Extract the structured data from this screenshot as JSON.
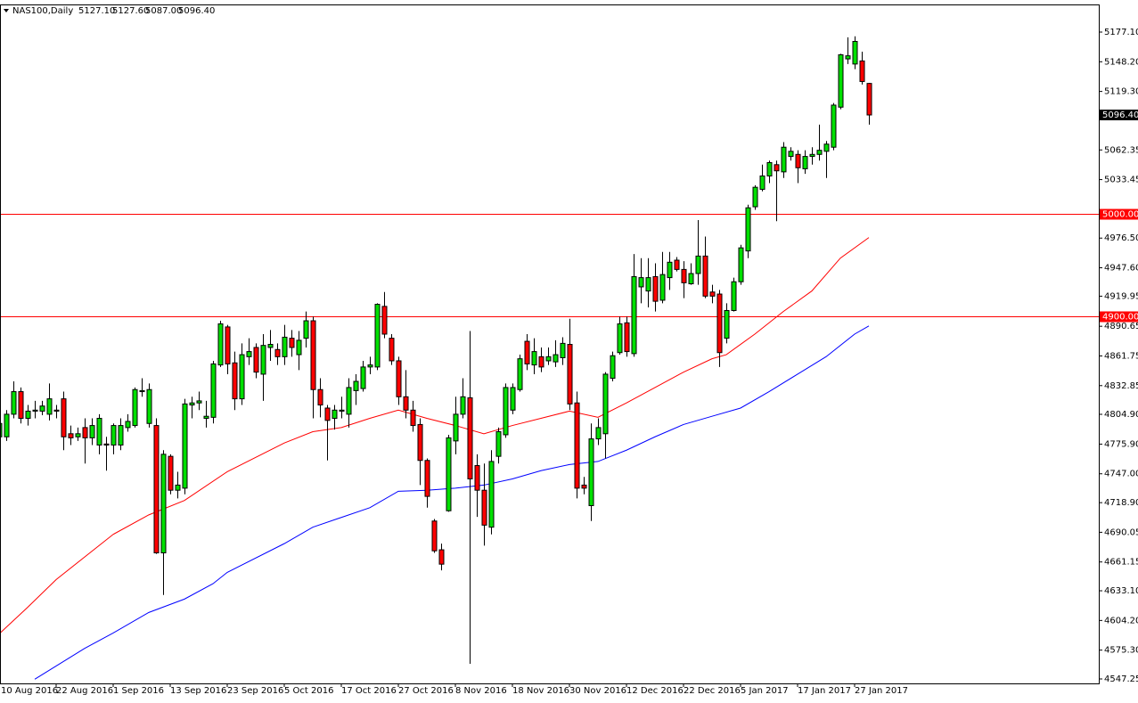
{
  "header": {
    "symbol": "NAS100,Daily",
    "ohlc": [
      "5127.10",
      "5127.60",
      "5087.00",
      "5096.40"
    ]
  },
  "chart_data": {
    "type": "candlestick",
    "categories": [
      "10 Aug 2016",
      null,
      null,
      null,
      null,
      null,
      null,
      null,
      "22 Aug 2016",
      null,
      null,
      null,
      null,
      null,
      null,
      null,
      "1 Sep 2016",
      null,
      null,
      null,
      null,
      null,
      null,
      null,
      "13 Sep 2016",
      null,
      null,
      null,
      null,
      null,
      null,
      null,
      "23 Sep 2016",
      null,
      null,
      null,
      null,
      null,
      null,
      null,
      "5 Oct 2016",
      null,
      null,
      null,
      null,
      null,
      null,
      null,
      "17 Oct 2016",
      null,
      null,
      null,
      null,
      null,
      null,
      null,
      "27 Oct 2016",
      null,
      null,
      null,
      null,
      null,
      null,
      null,
      "8 Nov 2016",
      null,
      null,
      null,
      null,
      null,
      null,
      null,
      "18 Nov 2016",
      null,
      null,
      null,
      null,
      null,
      null,
      null,
      "30 Nov 2016",
      null,
      null,
      null,
      null,
      null,
      null,
      null,
      "12 Dec 2016",
      null,
      null,
      null,
      null,
      null,
      null,
      null,
      "22 Dec 2016",
      null,
      null,
      null,
      null,
      null,
      null,
      null,
      "5 Jan 2017",
      null,
      null,
      null,
      null,
      null,
      null,
      null,
      "17 Jan 2017",
      null,
      null,
      null,
      null,
      null,
      null,
      null,
      "27 Jan 2017",
      null,
      null
    ],
    "open": [
      4783,
      4783,
      4805,
      4827,
      4801,
      4808,
      4808,
      4805,
      4809,
      4820,
      4786,
      4783,
      4792,
      4782,
      4775,
      4776,
      4775,
      4775,
      4792,
      4794,
      4827,
      4796,
      4794,
      4670,
      4764,
      4731,
      4733,
      4814,
      4816,
      4801,
      4802,
      4853,
      4890,
      4855,
      4820,
      4861,
      4870,
      4844,
      4870,
      4868,
      4861,
      4879,
      4863,
      4879,
      4896,
      4829,
      4811,
      4801,
      4808,
      4805,
      4828,
      4830,
      4851,
      4851,
      4910,
      4879,
      4857,
      4822,
      4809,
      4795,
      4760,
      4701,
      4673,
      4711,
      4779,
      4805,
      4821,
      4755,
      4731,
      4695,
      4764,
      4785,
      4809,
      4829,
      4876,
      4853,
      4861,
      4857,
      4856,
      4860,
      4873,
      4816,
      4736,
      4716,
      4781,
      4786,
      4840,
      4865,
      4894,
      4864,
      4929,
      4925,
      4939,
      4916,
      4938,
      4955,
      4946,
      4932,
      4942,
      4959,
      4924,
      4922,
      4879,
      4906,
      4934,
      4964,
      5007,
      5024,
      5037,
      5048,
      5041,
      5056,
      5058,
      5044,
      5056,
      5058,
      5061,
      5065,
      5104,
      5151,
      5146,
      5149,
      5127.1
    ],
    "high": [
      4801,
      4809,
      4837,
      4831,
      4814,
      4818,
      4818,
      4835,
      4814,
      4827,
      4794,
      4792,
      4801,
      4801,
      4805,
      4783,
      4796,
      4801,
      4805,
      4831,
      4840,
      4835,
      4801,
      4770,
      4766,
      4749,
      4820,
      4822,
      4827,
      4818,
      4857,
      4896,
      4892,
      4866,
      4874,
      4879,
      4874,
      4883,
      4887,
      4874,
      4892,
      4887,
      4886,
      4905,
      4900,
      4840,
      4814,
      4814,
      4822,
      4840,
      4844,
      4857,
      4861,
      4913,
      4924,
      4883,
      4861,
      4848,
      4818,
      4801,
      4762,
      4703,
      4679,
      4785,
      4822,
      4840,
      4886,
      4766,
      4757,
      4770,
      4792,
      4835,
      4835,
      4863,
      4883,
      4879,
      4870,
      4870,
      4877,
      4880,
      4898,
      4827,
      4744,
      4796,
      4801,
      4846,
      4866,
      4900,
      4900,
      4961,
      4957,
      4957,
      4952,
      4963,
      4963,
      4958,
      4954,
      4952,
      4994,
      4978,
      4931,
      4926,
      4913,
      4938,
      4970,
      5009,
      5028,
      5048,
      5052,
      5052,
      5070,
      5065,
      5062,
      5062,
      5065,
      5087,
      5071,
      5108,
      5156,
      5172,
      5173,
      5158,
      5127.6
    ],
    "low": [
      4773,
      4779,
      4801,
      4796,
      4794,
      4801,
      4804,
      4799,
      4801,
      4770,
      4775,
      4779,
      4757,
      4775,
      4766,
      4750,
      4766,
      4770,
      4788,
      4792,
      4822,
      4792,
      4669,
      4629,
      4727,
      4723,
      4727,
      4801,
      4809,
      4792,
      4796,
      4851,
      4844,
      4809,
      4814,
      4853,
      4840,
      4818,
      4857,
      4853,
      4853,
      4861,
      4848,
      4870,
      4801,
      4802,
      4760,
      4790,
      4801,
      4792,
      4814,
      4827,
      4844,
      4848,
      4879,
      4853,
      4814,
      4801,
      4788,
      4736,
      4714,
      4670,
      4653,
      4710,
      4766,
      4801,
      4562,
      4705,
      4677,
      4688,
      4757,
      4782,
      4805,
      4827,
      4848,
      4844,
      4846,
      4853,
      4851,
      4853,
      4809,
      4723,
      4727,
      4701,
      4775,
      4762,
      4837,
      4863,
      4861,
      4861,
      4913,
      4909,
      4905,
      4913,
      4926,
      4944,
      4918,
      4931,
      4931,
      4918,
      4913,
      4851,
      4874,
      4905,
      4931,
      4957,
      5004,
      5022,
      5030,
      4993,
      5035,
      5052,
      5030,
      5039,
      5048,
      5052,
      5035,
      5062,
      5102,
      5146,
      5141,
      5126,
      5087
    ],
    "close": [
      4796,
      4805,
      4827,
      4801,
      4808,
      4809,
      4813,
      4820,
      4808,
      4783,
      4782,
      4786,
      4782,
      4794,
      4801,
      4775,
      4794,
      4794,
      4798,
      4829,
      4828,
      4829,
      4670,
      4766,
      4731,
      4736,
      4815,
      4816,
      4818,
      4803,
      4854,
      4893,
      4854,
      4820,
      4863,
      4866,
      4846,
      4872,
      4873,
      4861,
      4880,
      4870,
      4877,
      4896,
      4829,
      4814,
      4799,
      4809,
      4809,
      4831,
      4837,
      4851,
      4853,
      4912,
      4883,
      4857,
      4822,
      4809,
      4794,
      4760,
      4725,
      4672,
      4659,
      4782,
      4805,
      4822,
      4742,
      4731,
      4697,
      4759,
      4788,
      4831,
      4831,
      4859,
      4854,
      4866,
      4851,
      4861,
      4863,
      4874,
      4815,
      4733,
      4733,
      4781,
      4792,
      4844,
      4862,
      4893,
      4866,
      4939,
      4938,
      4938,
      4915,
      4941,
      4953,
      4946,
      4933,
      4942,
      4959,
      4920,
      4920,
      4865,
      4906,
      4934,
      4967,
      5006,
      5026,
      5037,
      5050,
      5042,
      5065,
      5061,
      5045,
      5056,
      5058,
      5062,
      5068,
      5106,
      5155,
      5154,
      5168,
      5129,
      5096.4
    ],
    "up_color": "#00e000",
    "down_color": "#ff0000",
    "outline_color": "#000000",
    "ylim": [
      4542.9,
      5204
    ],
    "yticks": [
      {
        "value": 5177.1,
        "label": "5177.10"
      },
      {
        "value": 5148.2,
        "label": "5148.20"
      },
      {
        "value": 5119.3,
        "label": "5119.30"
      },
      5062.35,
      5033.45,
      {
        "value": 4976.5,
        "label": "4976.50"
      },
      {
        "value": 4947.6,
        "label": "4947.60"
      },
      4919.95,
      4890.65,
      4861.75,
      4832.85,
      {
        "value": 4804.9,
        "label": "4804.90"
      },
      {
        "value": 4775.9,
        "label": "4775.90"
      },
      {
        "value": 4747,
        "label": "4747.00"
      },
      {
        "value": 4718.9,
        "label": "4718.90"
      },
      4690.05,
      4661.15,
      {
        "value": 4633.1,
        "label": "4633.10"
      },
      {
        "value": 4604.2,
        "label": "4604.20"
      },
      {
        "value": 4575.3,
        "label": "4575.30"
      },
      4547.25
    ],
    "lines": [
      {
        "color": "#ff0000",
        "x": [
          0,
          4,
          8,
          16,
          21,
          26,
          32,
          40,
          44,
          48,
          52,
          56,
          60,
          64,
          68,
          72,
          76,
          80,
          84,
          88,
          92,
          96,
          100,
          102,
          106,
          110,
          114,
          118,
          122
        ],
        "values": [
          4591,
          4617,
          4644,
          4688,
          4707,
          4721,
          4749,
          4777,
          4788,
          4792,
          4801,
          4809,
          4801,
          4794,
          4786,
          4794,
          4801,
          4808,
          4802,
          4816,
          4831,
          4846,
          4859,
          4863,
          4883,
          4905,
          4925,
          4957,
          4977
        ]
      },
      {
        "color": "#0000ff",
        "x": [
          5,
          12,
          16,
          21,
          26,
          30,
          32,
          40,
          44,
          52,
          56,
          60,
          64,
          68,
          72,
          76,
          80,
          84,
          88,
          92,
          96,
          100,
          104,
          108,
          112,
          116,
          120,
          122
        ],
        "values": [
          4547,
          4577,
          4592,
          4612,
          4625,
          4640,
          4651,
          4679,
          4695,
          4714,
          4730,
          4731,
          4733,
          4736,
          4742,
          4750,
          4756,
          4759,
          4770,
          4783,
          4795,
          4803,
          4811,
          4827,
          4844,
          4861,
          4883,
          4891
        ]
      }
    ],
    "hlines": [
      {
        "value": 5000,
        "label": "5000.00"
      },
      {
        "value": 4900,
        "label": "4900.00"
      }
    ],
    "hline_color": "#ff0000",
    "last_price": {
      "value": 5096.4,
      "label": "5096.40"
    }
  }
}
